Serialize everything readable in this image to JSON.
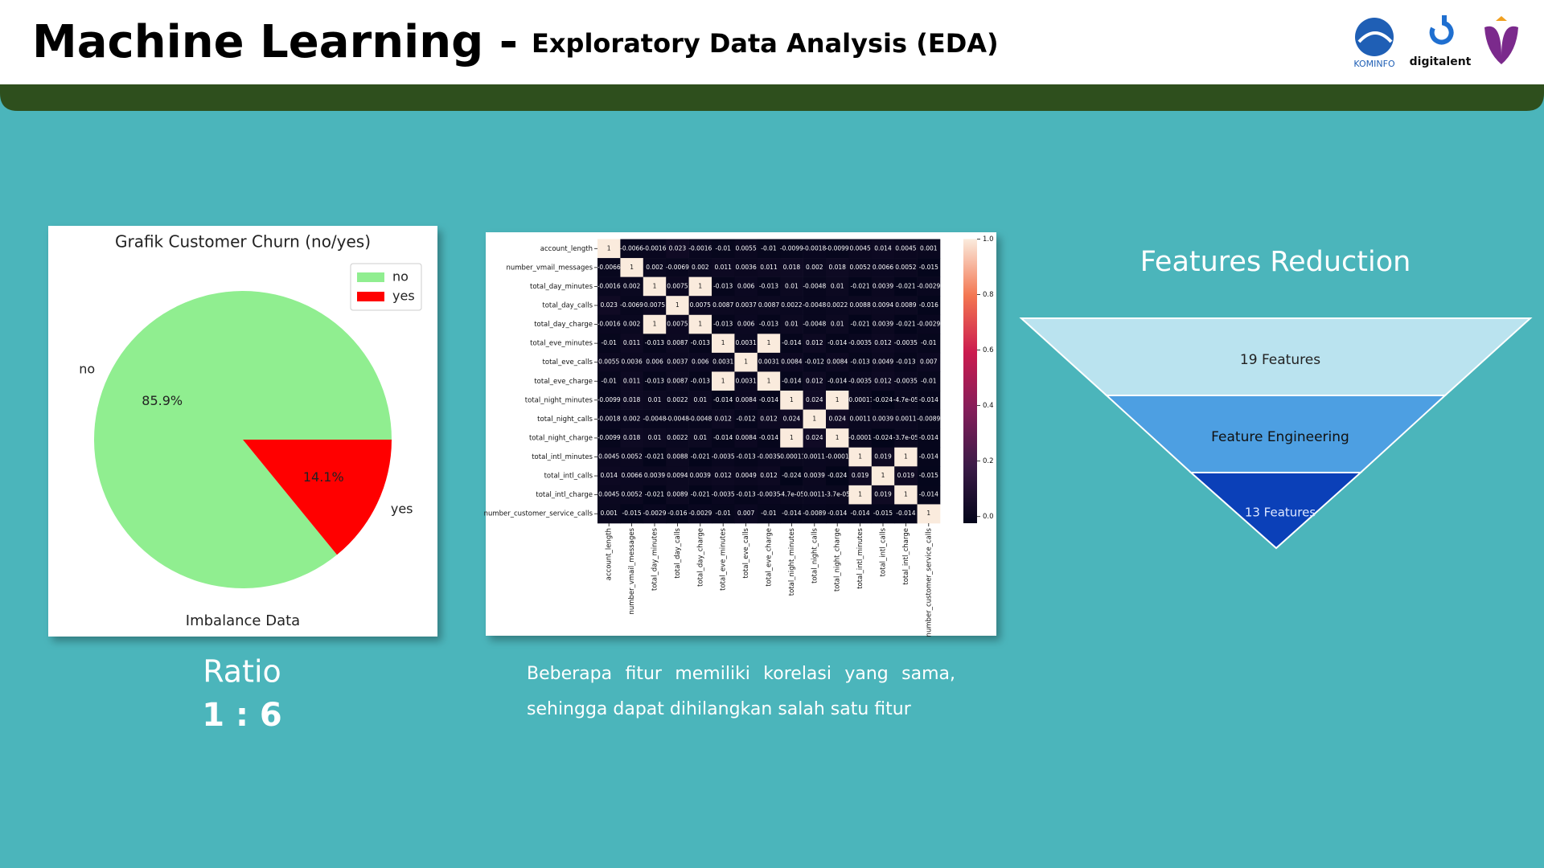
{
  "header": {
    "title": "Machine Learning -",
    "subtitle": "Exploratory Data Analysis (EDA)",
    "logos": [
      "KOMINFO",
      "digitalent"
    ]
  },
  "chart_data": [
    {
      "type": "pie",
      "title": "Grafik Customer Churn (no/yes)",
      "xlabel": "Imbalance Data",
      "categories": [
        "no",
        "yes"
      ],
      "values": [
        85.9,
        14.1
      ],
      "value_labels": [
        "85.9%",
        "14.1%"
      ],
      "colors": [
        "#90ee90",
        "#ff0000"
      ],
      "legend": "upper right"
    },
    {
      "type": "heatmap",
      "y_categories": [
        "account_length",
        "number_vmail_messages",
        "total_day_minutes",
        "total_day_calls",
        "total_day_charge",
        "total_eve_minutes",
        "total_eve_calls",
        "total_eve_charge",
        "total_night_minutes",
        "total_night_calls",
        "total_night_charge",
        "total_intl_minutes",
        "total_intl_calls",
        "total_intl_charge",
        "number_customer_service_calls"
      ],
      "x_categories": [
        "account_length",
        "number_vmail_messages",
        "total_day_minutes",
        "total_day_calls",
        "total_day_charge",
        "total_eve_minutes",
        "total_eve_calls",
        "total_eve_charge",
        "total_night_minutes",
        "total_night_calls",
        "total_night_charge",
        "total_intl_minutes",
        "total_intl_calls",
        "total_intl_charge",
        "number_customer_service_calls"
      ],
      "values": [
        [
          1,
          -0.0066,
          -0.0016,
          0.023,
          -0.0016,
          -0.01,
          0.0055,
          -0.01,
          -0.0099,
          -0.0018,
          -0.0099,
          0.0045,
          0.014,
          0.0045,
          0.001
        ],
        [
          -0.0066,
          1,
          0.002,
          -0.0069,
          0.002,
          0.011,
          0.0036,
          0.011,
          0.018,
          0.002,
          0.018,
          0.0052,
          0.0066,
          0.0052,
          -0.015
        ],
        [
          -0.0016,
          0.002,
          1,
          0.0075,
          1,
          -0.013,
          0.006,
          -0.013,
          0.01,
          -0.0048,
          0.01,
          -0.021,
          0.0039,
          -0.021,
          -0.0029
        ],
        [
          0.023,
          -0.0069,
          0.0075,
          1,
          0.0075,
          0.0087,
          0.0037,
          0.0087,
          0.0022,
          -0.0048,
          0.0022,
          0.0088,
          0.0094,
          0.0089,
          -0.016
        ],
        [
          -0.0016,
          0.002,
          1,
          0.0075,
          1,
          -0.013,
          0.006,
          -0.013,
          0.01,
          -0.0048,
          0.01,
          -0.021,
          0.0039,
          -0.021,
          -0.0029
        ],
        [
          -0.01,
          0.011,
          -0.013,
          0.0087,
          -0.013,
          1,
          0.0031,
          1,
          -0.014,
          0.012,
          -0.014,
          -0.0035,
          0.012,
          -0.0035,
          -0.01
        ],
        [
          0.0055,
          0.0036,
          0.006,
          0.0037,
          0.006,
          0.0031,
          1,
          0.0031,
          0.0084,
          -0.012,
          0.0084,
          -0.013,
          0.0049,
          -0.013,
          0.007
        ],
        [
          -0.01,
          0.011,
          -0.013,
          0.0087,
          -0.013,
          1,
          0.0031,
          1,
          -0.014,
          0.012,
          -0.014,
          -0.0035,
          0.012,
          -0.0035,
          -0.01
        ],
        [
          -0.0099,
          0.018,
          0.01,
          0.0022,
          0.01,
          -0.014,
          0.0084,
          -0.014,
          1,
          0.024,
          1,
          -0.00011,
          -0.024,
          -4.7e-05,
          -0.014
        ],
        [
          -0.0018,
          0.002,
          -0.0048,
          -0.0048,
          -0.0048,
          0.012,
          -0.012,
          0.012,
          0.024,
          1,
          0.024,
          0.0011,
          0.0039,
          0.0011,
          -0.0089
        ],
        [
          -0.0099,
          0.018,
          0.01,
          0.0022,
          0.01,
          -0.014,
          0.0084,
          -0.014,
          1,
          0.024,
          1,
          -0.0001,
          -0.024,
          -3.7e-05,
          -0.014
        ],
        [
          0.0045,
          0.0052,
          -0.021,
          0.0088,
          -0.021,
          -0.0035,
          -0.013,
          -0.0035,
          -0.00011,
          0.0011,
          -0.0001,
          1,
          0.019,
          1,
          -0.014
        ],
        [
          0.014,
          0.0066,
          0.0039,
          0.0094,
          0.0039,
          0.012,
          0.0049,
          0.012,
          -0.024,
          0.0039,
          -0.024,
          0.019,
          1,
          0.019,
          -0.015
        ],
        [
          0.0045,
          0.0052,
          -0.021,
          0.0089,
          -0.021,
          -0.0035,
          -0.013,
          -0.0035,
          -4.7e-05,
          0.0011,
          -3.7e-05,
          1,
          0.019,
          1,
          -0.014
        ],
        [
          0.001,
          -0.015,
          -0.0029,
          -0.016,
          -0.0029,
          -0.01,
          0.007,
          -0.01,
          -0.014,
          -0.0089,
          -0.014,
          -0.014,
          -0.015,
          -0.014,
          1
        ]
      ],
      "value_labels": [
        [
          "1",
          "-0.0066",
          "-0.0016",
          "0.023",
          "-0.0016",
          "-0.01",
          "0.0055",
          "-0.01",
          "-0.0099",
          "-0.0018",
          "-0.0099",
          "0.0045",
          "0.014",
          "0.0045",
          "0.001"
        ],
        [
          "-0.0066",
          "1",
          "0.002",
          "-0.0069",
          "0.002",
          "0.011",
          "0.0036",
          "0.011",
          "0.018",
          "0.002",
          "0.018",
          "0.0052",
          "0.0066",
          "0.0052",
          "-0.015"
        ],
        [
          "-0.0016",
          "0.002",
          "1",
          "0.0075",
          "1",
          "-0.013",
          "0.006",
          "-0.013",
          "0.01",
          "-0.0048",
          "0.01",
          "-0.021",
          "0.0039",
          "-0.021",
          "-0.0029"
        ],
        [
          "0.023",
          "-0.0069",
          "0.0075",
          "1",
          "0.0075",
          "0.0087",
          "0.0037",
          "0.0087",
          "0.0022",
          "-0.0048",
          "0.0022",
          "0.0088",
          "0.0094",
          "0.0089",
          "-0.016"
        ],
        [
          "-0.0016",
          "0.002",
          "1",
          "0.0075",
          "1",
          "-0.013",
          "0.006",
          "-0.013",
          "0.01",
          "-0.0048",
          "0.01",
          "-0.021",
          "0.0039",
          "-0.021",
          "-0.0029"
        ],
        [
          "-0.01",
          "0.011",
          "-0.013",
          "0.0087",
          "-0.013",
          "1",
          "0.0031",
          "1",
          "-0.014",
          "0.012",
          "-0.014",
          "-0.0035",
          "0.012",
          "-0.0035",
          "-0.01"
        ],
        [
          "0.0055",
          "0.0036",
          "0.006",
          "0.0037",
          "0.006",
          "0.0031",
          "1",
          "0.0031",
          "0.0084",
          "-0.012",
          "0.0084",
          "-0.013",
          "0.0049",
          "-0.013",
          "0.007"
        ],
        [
          "-0.01",
          "0.011",
          "-0.013",
          "0.0087",
          "-0.013",
          "1",
          "0.0031",
          "1",
          "-0.014",
          "0.012",
          "-0.014",
          "-0.0035",
          "0.012",
          "-0.0035",
          "-0.01"
        ],
        [
          "-0.0099",
          "0.018",
          "0.01",
          "0.0022",
          "0.01",
          "-0.014",
          "0.0084",
          "-0.014",
          "1",
          "0.024",
          "1",
          "-0.00011",
          "-0.024",
          "-4.7e-05",
          "-0.014"
        ],
        [
          "-0.0018",
          "0.002",
          "-0.0048",
          "-0.0048",
          "-0.0048",
          "0.012",
          "-0.012",
          "0.012",
          "0.024",
          "1",
          "0.024",
          "0.0011",
          "0.0039",
          "0.0011",
          "-0.0089"
        ],
        [
          "-0.0099",
          "0.018",
          "0.01",
          "0.0022",
          "0.01",
          "-0.014",
          "0.0084",
          "-0.014",
          "1",
          "0.024",
          "1",
          "-0.0001",
          "-0.024",
          "-3.7e-05",
          "-0.014"
        ],
        [
          "0.0045",
          "0.0052",
          "-0.021",
          "0.0088",
          "-0.021",
          "-0.0035",
          "-0.013",
          "-0.0035",
          "-0.00011",
          "0.0011",
          "-0.0001",
          "1",
          "0.019",
          "1",
          "-0.014"
        ],
        [
          "0.014",
          "0.0066",
          "0.0039",
          "0.0094",
          "0.0039",
          "0.012",
          "0.0049",
          "0.012",
          "-0.024",
          "0.0039",
          "-0.024",
          "0.019",
          "1",
          "0.019",
          "-0.015"
        ],
        [
          "0.0045",
          "0.0052",
          "-0.021",
          "0.0089",
          "-0.021",
          "-0.0035",
          "-0.013",
          "-0.0035",
          "-4.7e-05",
          "0.0011",
          "-3.7e-05",
          "1",
          "0.019",
          "1",
          "-0.014"
        ],
        [
          "0.001",
          "-0.015",
          "-0.0029",
          "-0.016",
          "-0.0029",
          "-0.01",
          "0.007",
          "-0.01",
          "-0.014",
          "-0.0089",
          "-0.014",
          "-0.014",
          "-0.015",
          "-0.014",
          "1"
        ]
      ],
      "zlim": [
        -0.024,
        1
      ],
      "colorbar_ticks": [
        {
          "value": 0,
          "label": "0.0"
        },
        {
          "value": 0.2,
          "label": "0.2"
        },
        {
          "value": 0.4,
          "label": "0.4"
        },
        {
          "value": 0.6,
          "label": "0.6"
        },
        {
          "value": 0.8,
          "label": "0.8"
        },
        {
          "value": 1,
          "label": "1.0"
        }
      ],
      "colormap": "rocket"
    }
  ],
  "ratio": {
    "label": "Ratio",
    "value": "1 : 6"
  },
  "description": "Beberapa fitur memiliki korelasi yang sama, sehingga dapat dihilangkan salah satu fitur",
  "funnel": {
    "title": "Features Reduction",
    "levels": [
      "19 Features",
      "Feature Engineering",
      "13 Features"
    ]
  }
}
